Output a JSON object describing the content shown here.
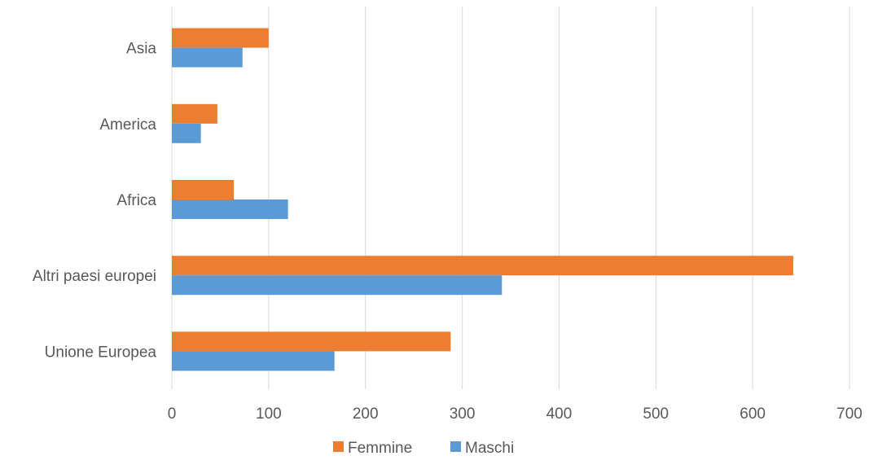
{
  "chart_data": {
    "type": "bar",
    "orientation": "horizontal",
    "categories": [
      "Unione Europea",
      "Altri paesi europei",
      "Africa",
      "America",
      "Asia"
    ],
    "series": [
      {
        "name": "Maschi",
        "color": "#5B9BD5",
        "values": [
          168,
          341,
          120,
          30,
          73
        ]
      },
      {
        "name": "Femmine",
        "color": "#ED7D31",
        "values": [
          288,
          642,
          64,
          47,
          100
        ]
      }
    ],
    "xlim": [
      0,
      700
    ],
    "xticks": [
      0,
      100,
      200,
      300,
      400,
      500,
      600,
      700
    ],
    "legend_order": [
      "Femmine",
      "Maschi"
    ],
    "legend_position": "bottom",
    "grid": true,
    "gridline_color": "#D9D9D9",
    "title": "",
    "xlabel": "",
    "ylabel": ""
  }
}
